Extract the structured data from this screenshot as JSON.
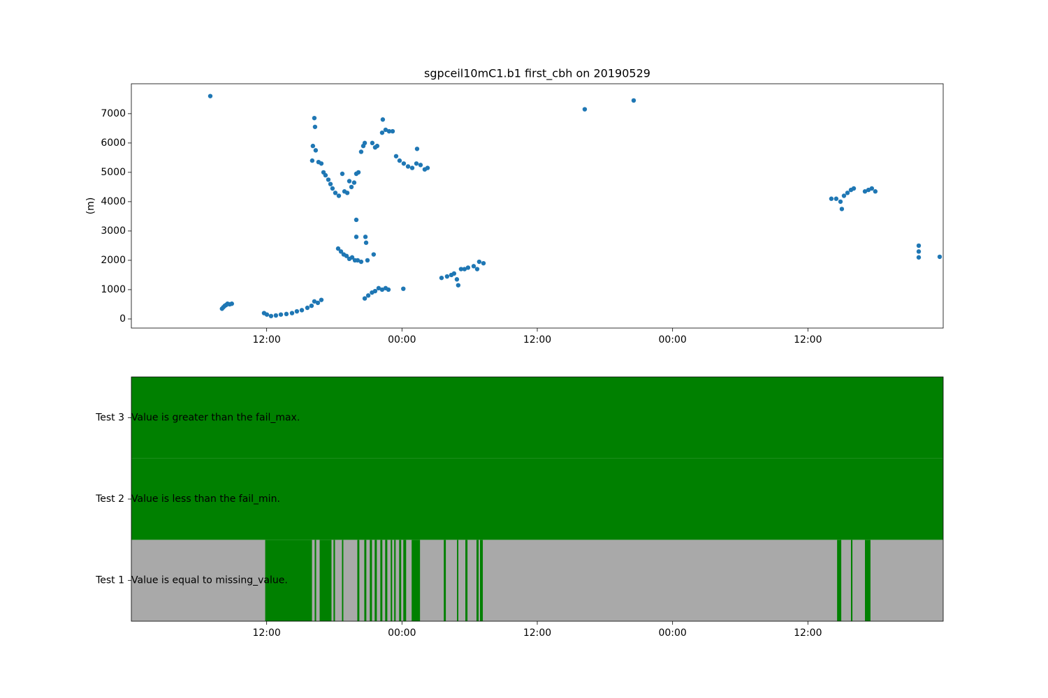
{
  "chart_data": [
    {
      "type": "scatter",
      "title": "sgpceil10mC1.b1 first_cbh on 20190529",
      "y_label": "(m)",
      "color": "#1f77b4",
      "x": [
        7.0,
        8.04,
        8.16,
        8.29,
        8.41,
        8.53,
        8.72,
        8.91,
        11.77,
        12.02,
        12.39,
        12.82,
        13.26,
        13.75,
        14.25,
        14.68,
        15.12,
        15.61,
        15.98,
        16.23,
        16.54,
        16.85,
        16.1,
        16.23,
        16.29,
        16.04,
        16.35,
        16.6,
        16.85,
        17.04,
        17.22,
        17.47,
        17.66,
        17.84,
        18.09,
        18.4,
        18.71,
        18.9,
        19.15,
        19.33,
        19.52,
        19.76,
        19.95,
        20.14,
        20.38,
        20.57,
        20.7,
        21.37,
        21.62,
        21.8,
        22.3,
        22.24,
        22.55,
        22.86,
        23.17,
        18.34,
        18.59,
        18.83,
        19.08,
        19.33,
        19.58,
        19.83,
        20.07,
        20.38,
        20.94,
        21.49,
        19.95,
        19.95,
        20.76,
        20.82,
        20.7,
        21.01,
        21.34,
        21.62,
        21.93,
        22.24,
        22.55,
        22.8,
        24.12,
        23.48,
        23.79,
        24.16,
        24.54,
        24.91,
        25.28,
        25.34,
        25.65,
        26.02,
        26.27,
        27.51,
        28.0,
        28.38,
        28.62,
        28.87,
        28.99,
        29.24,
        29.55,
        29.86,
        30.36,
        30.67,
        30.85,
        31.23,
        40.21,
        44.55,
        62.08,
        62.51,
        62.89,
        63.01,
        63.2,
        63.51,
        63.82,
        64.07,
        65.06,
        65.37,
        65.67,
        65.98,
        69.83,
        69.83,
        69.83,
        71.69
      ],
      "values": [
        7600,
        350,
        400,
        450,
        480,
        520,
        500,
        520,
        200,
        150,
        100,
        120,
        150,
        170,
        200,
        260,
        300,
        380,
        450,
        600,
        550,
        650,
        5900,
        6850,
        6550,
        5400,
        5750,
        5350,
        5300,
        5000,
        4900,
        4750,
        4600,
        4450,
        4300,
        4200,
        4950,
        4350,
        4300,
        4700,
        4500,
        4650,
        4950,
        5000,
        5700,
        5900,
        6000,
        6000,
        5850,
        5900,
        6800,
        6350,
        6450,
        6400,
        6400,
        2400,
        2300,
        2200,
        2150,
        2050,
        2100,
        2000,
        2000,
        1950,
        2000,
        2200,
        3380,
        2800,
        2800,
        2600,
        700,
        800,
        900,
        950,
        1050,
        1000,
        1050,
        1000,
        1030,
        5550,
        5400,
        5300,
        5200,
        5150,
        5300,
        5800,
        5250,
        5100,
        5150,
        1400,
        1450,
        1500,
        1550,
        1350,
        1150,
        1700,
        1700,
        1750,
        1800,
        1700,
        1950,
        1900,
        7150,
        7450,
        4100,
        4100,
        4000,
        3750,
        4200,
        4300,
        4400,
        4450,
        4350,
        4400,
        4450,
        4350,
        2500,
        2300,
        2100,
        2120
      ],
      "xlim": [
        0,
        72
      ],
      "ylim": [
        -310,
        8020
      ],
      "xticks": [
        {
          "value": 12,
          "label": "12:00"
        },
        {
          "value": 24,
          "label": "00:00"
        },
        {
          "value": 36,
          "label": "12:00"
        },
        {
          "value": 48,
          "label": "00:00"
        },
        {
          "value": 60,
          "label": "12:00"
        }
      ],
      "yticks": [
        0,
        1000,
        2000,
        3000,
        4000,
        5000,
        6000,
        7000
      ]
    },
    {
      "type": "flags",
      "pass_color": "#008000",
      "fail_color": "#a9a9a9",
      "categories": [
        "Test 1",
        "Test 2",
        "Test 3"
      ],
      "annotations": [
        "Value is equal to missing_value.",
        "Value is less than the fail_min.",
        "Value is greater than the fail_max."
      ],
      "fail_intervals": [
        [
          [
            0,
            11.87
          ],
          [
            16.02,
            16.26
          ],
          [
            16.39,
            16.7
          ],
          [
            17.75,
            17.93
          ],
          [
            18.06,
            18.68
          ],
          [
            18.8,
            20.04
          ],
          [
            20.22,
            20.66
          ],
          [
            20.84,
            21.15
          ],
          [
            21.34,
            21.58
          ],
          [
            21.77,
            22.08
          ],
          [
            22.26,
            22.51
          ],
          [
            22.7,
            23.0
          ],
          [
            23.13,
            23.31
          ],
          [
            23.44,
            23.75
          ],
          [
            23.93,
            24.12
          ],
          [
            24.37,
            24.86
          ],
          [
            25.6,
            27.71
          ],
          [
            27.89,
            28.88
          ],
          [
            29.0,
            29.62
          ],
          [
            29.81,
            30.61
          ],
          [
            30.8,
            30.92
          ],
          [
            31.17,
            62.59
          ],
          [
            62.96,
            63.82
          ],
          [
            63.95,
            65.06
          ],
          [
            65.55,
            72
          ]
        ],
        [],
        []
      ],
      "xlim": [
        0,
        72
      ],
      "xticks": [
        {
          "value": 12,
          "label": "12:00"
        },
        {
          "value": 24,
          "label": "00:00"
        },
        {
          "value": 36,
          "label": "12:00"
        },
        {
          "value": 48,
          "label": "00:00"
        },
        {
          "value": 60,
          "label": "12:00"
        }
      ]
    }
  ]
}
